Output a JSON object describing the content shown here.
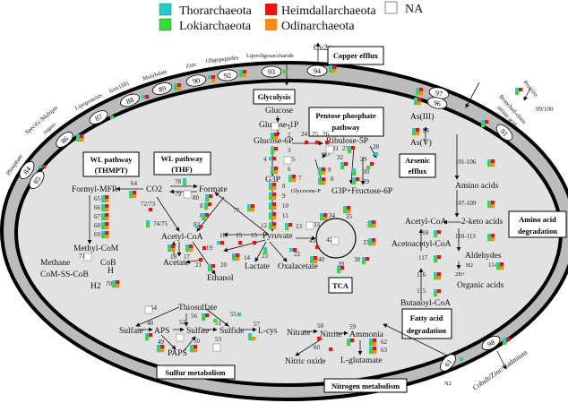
{
  "legend": [
    {
      "label": "Thorarchaeota",
      "color": "#22cccc"
    },
    {
      "label": "Lokiarchaeota",
      "color": "#33dd33"
    },
    {
      "label": "Heimdallarchaeota",
      "color": "#ee1111"
    },
    {
      "label": "Odinarchaeota",
      "color": "#ff8811"
    },
    {
      "label": "NA",
      "color": "#ffffff"
    }
  ],
  "boxes": {
    "copper": "Copper efflux",
    "glycolysis": "Glycolysis",
    "ppp1": "Pentose phosphate",
    "ppp2": "pathway",
    "wl1a": "WL pathway",
    "wl1b": "(THMPT)",
    "wl2a": "WL pathway",
    "wl2b": "(THF)",
    "ars1": "Arsenic",
    "ars2": "efflux",
    "aa1": "Amino acid",
    "aa2": "degradation",
    "tca": "TCA",
    "fa1": "Fatty acid",
    "fa2": "degradation",
    "sulfur": "Sulfur metabolism",
    "nitrogen": "Nitrogen metabolism"
  },
  "substrates": {
    "phosphate": "Phosphate",
    "sugars1": "Specific/Multiple",
    "sugars2": "sugars",
    "lipo": "Lipoproteins",
    "iron": "Iron (III)",
    "molybdate": "Molybdate",
    "zinc": "Zinc",
    "oligo": "Oligopeptides",
    "lipooligo": "Lipooligosaccharide",
    "cu": "Cu2+",
    "proteins": "Proteins",
    "bcaa1": "Branched-chain",
    "bcaa2": "amino acid",
    "cobalt": "Cobalt/Zinc/Cadmium",
    "n2": "N2"
  },
  "metabolites": {
    "glucose": "Glucose",
    "g1p": "Glucose-1P",
    "g6p": "Glucose-6P",
    "g3p": "G3P",
    "glyceroneP": "Glycerone-P",
    "pyruvate": "Pyruvate",
    "lactate": "Lactate",
    "oxalacetate": "Oxalacetate",
    "ribulose": "Ribulose-5P",
    "co": "CO",
    "g3pf6p": "G3P+Fructose-6P",
    "formylmfr": "Formyl-MFR",
    "co2": "CO2",
    "formate": "Formate",
    "acetylcoa": "Acetyl-CoA",
    "acetate": "Acetate",
    "ethanol": "Ethanol",
    "methylcom": "Methyl-CoM",
    "methane": "Methane",
    "cob": "CoB",
    "comsscob": "CoM-SS-CoB",
    "h": "H",
    "h2a": "H2",
    "as3": "As(III)",
    "as5": "As(V)",
    "aminoacids": "Amino acids",
    "ketoacids": "2-keto acids",
    "acetylcoa2": "Acetyl-CoA",
    "acetoacetyl": "Acetoacetyl-CoA",
    "aldehydes": "Aldehydes",
    "h2b": "H2",
    "h2plus": "2H+",
    "organic": "Organic acids",
    "butanoyl": "Butanoyl-CoA",
    "thiosulfate": "Thiosulfate",
    "sulfate": "Sulfate",
    "aps": "APS",
    "sulfite": "Sulfite",
    "sulfide": "Sulfide",
    "lcys": "L-cys",
    "paps": "PAPS",
    "nitrate": "Nitrate",
    "nitrite": "Nitrite",
    "ammonia": "Ammonia",
    "nitricoxide": "Nitric oxide",
    "lglutamate": "L-glutamate"
  },
  "transporters": [
    {
      "id": "84",
      "taxa": "TH"
    },
    {
      "id": "85",
      "taxa": ""
    },
    {
      "id": "86",
      "taxa": "TLHO"
    },
    {
      "id": "87",
      "taxa": "L"
    },
    {
      "id": "88",
      "taxa": "TH"
    },
    {
      "id": "89",
      "taxa": "TLHO"
    },
    {
      "id": "90",
      "taxa": "THO"
    },
    {
      "id": "92",
      "taxa": "TLHO"
    },
    {
      "id": "93",
      "taxa": "L"
    },
    {
      "id": "94",
      "taxa": "TLHO"
    },
    {
      "id": "97",
      "taxa": "TLHO"
    },
    {
      "id": "96",
      "taxa": "TLHO"
    },
    {
      "id": "91",
      "taxa": "TLH"
    },
    {
      "id": "99/100",
      "taxa": "THL"
    },
    {
      "id": "98",
      "taxa": "THL"
    },
    {
      "id": "61",
      "taxa": "T"
    }
  ],
  "reactions": [
    {
      "id": "1",
      "taxa": "NA"
    },
    {
      "id": "2",
      "taxa": "TLHO"
    },
    {
      "id": "3",
      "taxa": "TLH"
    },
    {
      "id": "4",
      "taxa": "TH"
    },
    {
      "id": "5",
      "taxa": "NA"
    },
    {
      "id": "6",
      "taxa": "TLHO"
    },
    {
      "id": "7",
      "taxa": "TLHO"
    },
    {
      "id": "8",
      "taxa": "TLHO"
    },
    {
      "id": "9",
      "taxa": "TLHO"
    },
    {
      "id": "10",
      "taxa": "TLHO"
    },
    {
      "id": "11",
      "taxa": "TLHO"
    },
    {
      "id": "12",
      "taxa": "TLHO"
    },
    {
      "id": "13",
      "taxa": "TLH"
    },
    {
      "id": "14",
      "taxa": "TLHO"
    },
    {
      "id": "15",
      "taxa": "H"
    },
    {
      "id": "15b",
      "label": "15",
      "taxa": "H"
    },
    {
      "id": "16",
      "taxa": "TH"
    },
    {
      "id": "17",
      "taxa": "TLHO"
    },
    {
      "id": "18",
      "taxa": "TLHO"
    },
    {
      "id": "19",
      "taxa": "H"
    },
    {
      "id": "20",
      "taxa": "TLH"
    },
    {
      "id": "21",
      "taxa": "H"
    },
    {
      "id": "22",
      "taxa": "TH"
    },
    {
      "id": "23",
      "taxa": "TL"
    },
    {
      "id": "24",
      "taxa": "H"
    },
    {
      "id": "25",
      "taxa": "H"
    },
    {
      "id": "26",
      "taxa": "H"
    },
    {
      "id": "27",
      "taxa": "TLH"
    },
    {
      "id": "28",
      "taxa": "T"
    },
    {
      "id": "29",
      "taxa": "LH"
    },
    {
      "id": "30",
      "taxa": "TL"
    },
    {
      "id": "29b",
      "label": "29",
      "taxa": "TLH"
    },
    {
      "id": "31",
      "taxa": "NA"
    },
    {
      "id": "32",
      "taxa": "TLH"
    },
    {
      "id": "9b",
      "label": "9",
      "taxa": "TLHO"
    },
    {
      "id": "8b",
      "label": "8",
      "taxa": "TLHO"
    },
    {
      "id": "33",
      "taxa": "NA"
    },
    {
      "id": "34",
      "taxa": "TLHO"
    },
    {
      "id": "35",
      "taxa": "TLHO"
    },
    {
      "id": "36",
      "taxa": "TLHO"
    },
    {
      "id": "37",
      "taxa": "TLHO"
    },
    {
      "id": "38",
      "taxa": "TLH"
    },
    {
      "id": "39",
      "taxa": "TLH"
    },
    {
      "id": "40",
      "taxa": "TLHO"
    },
    {
      "id": "41",
      "taxa": "H"
    },
    {
      "id": "42",
      "taxa": "NA"
    },
    {
      "id": "48",
      "taxa": "TLH"
    },
    {
      "id": "49",
      "taxa": "TLHO"
    },
    {
      "id": "50",
      "taxa": "TLHO"
    },
    {
      "id": "51",
      "taxa": "L"
    },
    {
      "id": "52",
      "taxa": "NA"
    },
    {
      "id": "53",
      "taxa": "NA"
    },
    {
      "id": "54",
      "taxa": "NA"
    },
    {
      "id": "55",
      "taxa": "T"
    },
    {
      "id": "56",
      "taxa": "TLH"
    },
    {
      "id": "57",
      "taxa": "TLO"
    },
    {
      "id": "58",
      "taxa": "H"
    },
    {
      "id": "59",
      "taxa": "TLH"
    },
    {
      "id": "60",
      "taxa": "H"
    },
    {
      "id": "62",
      "taxa": "TLHO"
    },
    {
      "id": "63",
      "taxa": "TLHO"
    },
    {
      "id": "64",
      "taxa": "TLHO"
    },
    {
      "id": "65",
      "taxa": "TLHO"
    },
    {
      "id": "66",
      "taxa": "TLHO"
    },
    {
      "id": "67",
      "taxa": "TLHO"
    },
    {
      "id": "68",
      "taxa": "TLHO"
    },
    {
      "id": "69",
      "taxa": "TLHO"
    },
    {
      "id": "70",
      "taxa": "TLHO"
    },
    {
      "id": "71",
      "taxa": "NA"
    },
    {
      "id": "72/73",
      "taxa": "H"
    },
    {
      "id": "74/75",
      "taxa": "TL"
    },
    {
      "id": "77",
      "taxa": "TLHO"
    },
    {
      "id": "78",
      "taxa": "TL"
    },
    {
      "id": "79",
      "taxa": "NA"
    },
    {
      "id": "80",
      "taxa": "TLH"
    },
    {
      "id": "81",
      "taxa": "TLH"
    },
    {
      "id": "81b",
      "label": "81",
      "taxa": "TLH"
    },
    {
      "id": "82",
      "taxa": "TH"
    },
    {
      "id": "95",
      "taxa": "TLHO"
    },
    {
      "id": "101-106",
      "taxa": "TLHO"
    },
    {
      "id": "107-109",
      "taxa": "TLHO"
    },
    {
      "id": "110-113",
      "taxa": "TLHO"
    },
    {
      "id": "114",
      "taxa": "TLHO"
    },
    {
      "id": "115",
      "taxa": "TLH"
    },
    {
      "id": "116",
      "taxa": "TLHO"
    },
    {
      "id": "117",
      "taxa": "TLH"
    },
    {
      "id": "118",
      "taxa": "TLH"
    }
  ]
}
